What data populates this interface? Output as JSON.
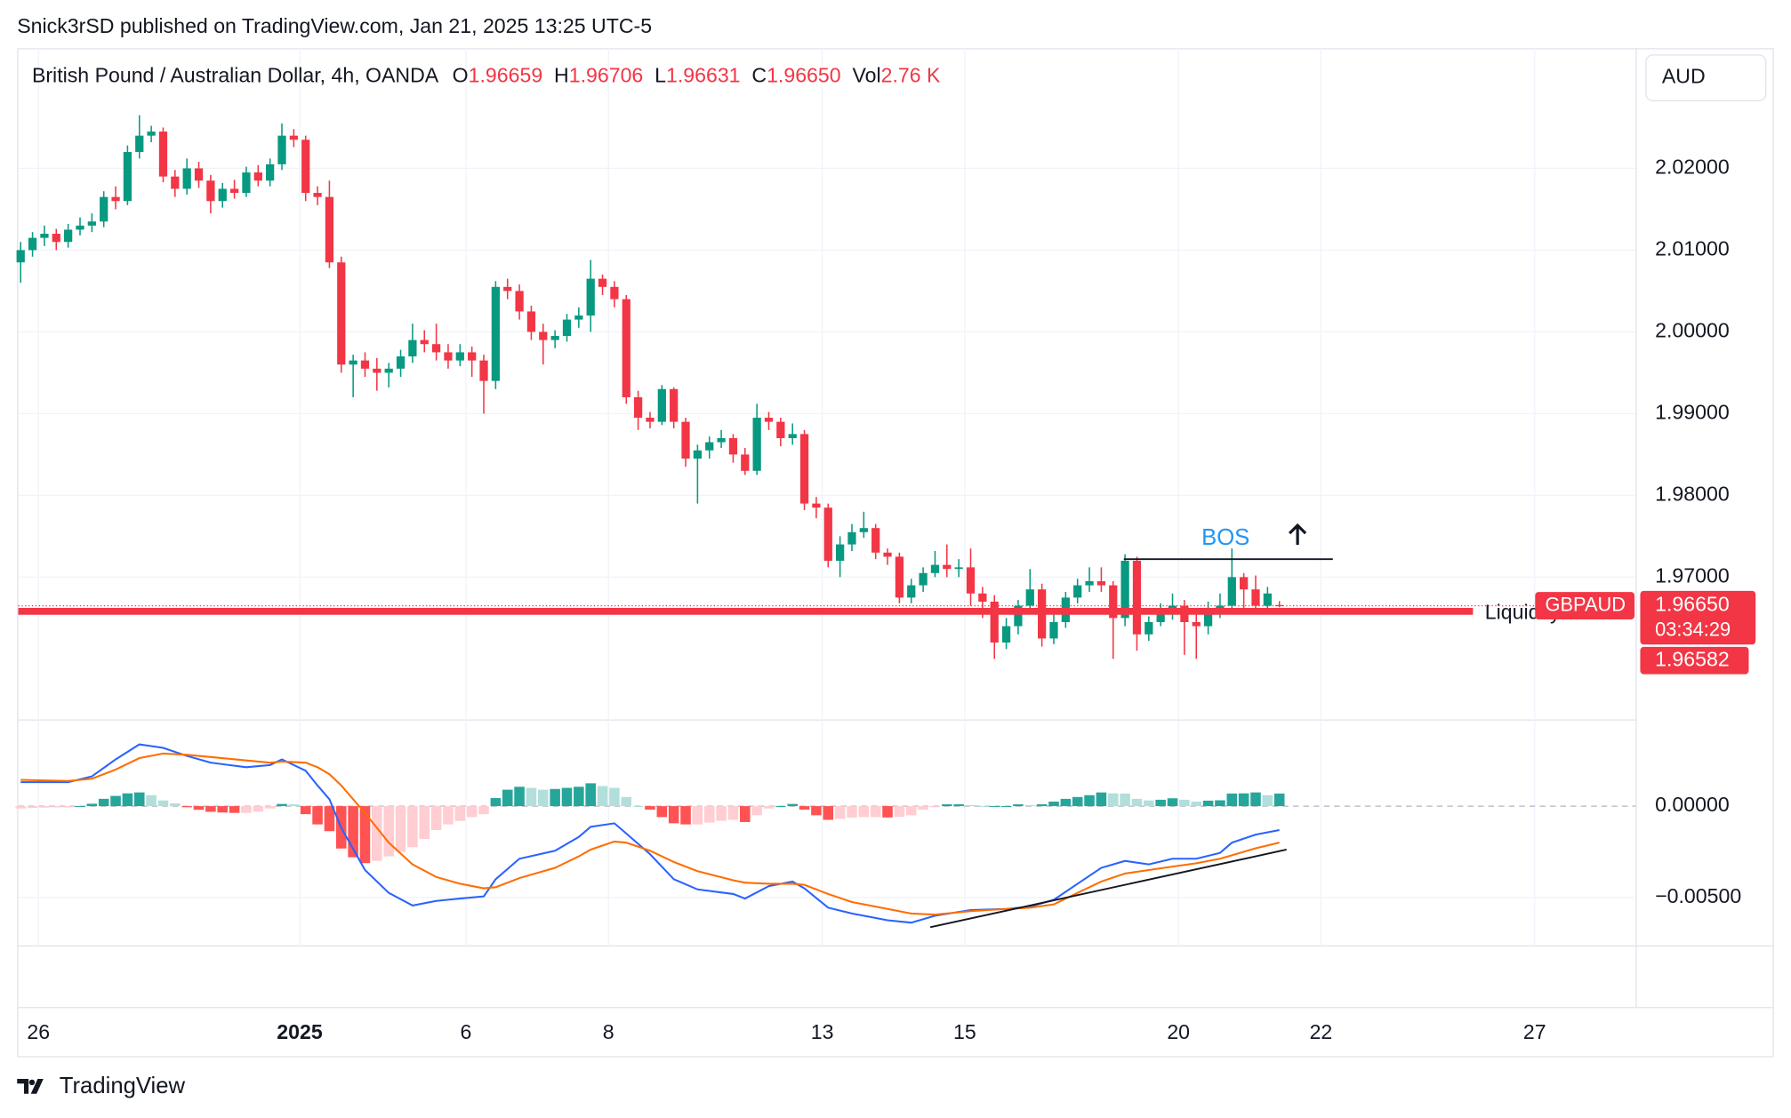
{
  "header": {
    "published": "Snick3rSD published on TradingView.com, Jan 21, 2025 13:25 UTC-5",
    "brand": "TradingView"
  },
  "chart_data": {
    "type": "candlestick",
    "title": "British Pound / Australian Dollar, 4h, OANDA",
    "ohlc_letters": [
      "O",
      "H",
      "L",
      "C"
    ],
    "ohlc_labels": [
      "1.96659",
      "1.96706",
      "1.96631",
      "1.96650"
    ],
    "volume_name": "Vol",
    "volume": 2760,
    "volume_label": "2.76 K",
    "currency": "AUD",
    "symbol": "GBPAUD",
    "countdown": "03:34:29",
    "up_color": "#089981",
    "down_color": "#f23645",
    "candles": [
      [
        2.0085,
        2.011,
        2.006,
        2.01
      ],
      [
        2.01,
        2.0122,
        2.0092,
        2.0115
      ],
      [
        2.0115,
        2.013,
        2.0105,
        2.012
      ],
      [
        2.012,
        2.0126,
        2.01,
        2.011
      ],
      [
        2.011,
        2.0132,
        2.0103,
        2.0125
      ],
      [
        2.0125,
        2.014,
        2.0118,
        2.013
      ],
      [
        2.013,
        2.0145,
        2.0122,
        2.0135
      ],
      [
        2.0135,
        2.0172,
        2.0128,
        2.0165
      ],
      [
        2.0165,
        2.0178,
        2.015,
        2.016
      ],
      [
        2.016,
        2.0228,
        2.0155,
        2.022
      ],
      [
        2.022,
        2.0265,
        2.0212,
        2.024
      ],
      [
        2.024,
        2.0252,
        2.0232,
        2.0245
      ],
      [
        2.0245,
        2.025,
        2.0183,
        2.019
      ],
      [
        2.019,
        2.0198,
        2.0165,
        2.0175
      ],
      [
        2.0175,
        2.0212,
        2.0168,
        2.02
      ],
      [
        2.02,
        2.0208,
        2.0176,
        2.0185
      ],
      [
        2.0185,
        2.0192,
        2.0145,
        2.016
      ],
      [
        2.016,
        2.0182,
        2.0152,
        2.0175
      ],
      [
        2.0175,
        2.0186,
        2.0163,
        2.017
      ],
      [
        2.017,
        2.0202,
        2.0165,
        2.0195
      ],
      [
        2.0195,
        2.0204,
        2.0178,
        2.0185
      ],
      [
        2.0185,
        2.0212,
        2.0178,
        2.0205
      ],
      [
        2.0205,
        2.0255,
        2.0198,
        2.024
      ],
      [
        2.024,
        2.0248,
        2.0226,
        2.0235
      ],
      [
        2.0235,
        2.024,
        2.016,
        2.017
      ],
      [
        2.017,
        2.0178,
        2.0155,
        2.0165
      ],
      [
        2.0165,
        2.0185,
        2.0078,
        2.0085
      ],
      [
        2.0085,
        2.0092,
        1.995,
        1.996
      ],
      [
        1.996,
        1.9972,
        1.992,
        1.9965
      ],
      [
        1.9965,
        1.9975,
        1.9945,
        1.9955
      ],
      [
        1.9955,
        1.9968,
        1.9928,
        1.995
      ],
      [
        1.995,
        1.9962,
        1.9932,
        1.9955
      ],
      [
        1.9955,
        1.9978,
        1.9945,
        1.997
      ],
      [
        1.997,
        2.001,
        1.9962,
        1.999
      ],
      [
        1.999,
        2.0002,
        1.9975,
        1.9985
      ],
      [
        1.9985,
        2.001,
        1.9965,
        1.9975
      ],
      [
        1.9975,
        1.9985,
        1.9955,
        1.9965
      ],
      [
        1.9965,
        1.9985,
        1.9958,
        1.9975
      ],
      [
        1.9975,
        1.9982,
        1.9945,
        1.9965
      ],
      [
        1.9965,
        1.9972,
        1.99,
        1.994
      ],
      [
        1.994,
        2.0062,
        1.993,
        2.0055
      ],
      [
        2.0055,
        2.0065,
        2.004,
        2.005
      ],
      [
        2.005,
        2.0058,
        2.0015,
        2.0025
      ],
      [
        2.0025,
        2.0032,
        1.999,
        2.0
      ],
      [
        2.0,
        2.001,
        1.996,
        1.999
      ],
      [
        1.999,
        2.0002,
        1.998,
        1.9995
      ],
      [
        1.9995,
        2.0022,
        1.9988,
        2.0015
      ],
      [
        2.0015,
        2.003,
        2.0005,
        2.002
      ],
      [
        2.002,
        2.0088,
        2.0,
        2.0065
      ],
      [
        2.0065,
        2.007,
        2.0045,
        2.0055
      ],
      [
        2.0055,
        2.0062,
        2.003,
        2.004
      ],
      [
        2.004,
        2.0045,
        1.9912,
        1.992
      ],
      [
        1.992,
        1.9928,
        1.988,
        1.9895
      ],
      [
        1.9895,
        1.9902,
        1.9882,
        1.989
      ],
      [
        1.989,
        1.9935,
        1.9886,
        1.993
      ],
      [
        1.993,
        1.9932,
        1.9882,
        1.989
      ],
      [
        1.989,
        1.9895,
        1.9835,
        1.9845
      ],
      [
        1.9845,
        1.9862,
        1.979,
        1.9855
      ],
      [
        1.9855,
        1.9872,
        1.9845,
        1.9865
      ],
      [
        1.9865,
        1.988,
        1.9858,
        1.987
      ],
      [
        1.987,
        1.9875,
        1.984,
        1.985
      ],
      [
        1.985,
        1.9858,
        1.9825,
        1.983
      ],
      [
        1.983,
        1.9912,
        1.9825,
        1.9895
      ],
      [
        1.9895,
        1.9902,
        1.988,
        1.989
      ],
      [
        1.989,
        1.9895,
        1.986,
        1.987
      ],
      [
        1.987,
        1.9888,
        1.9862,
        1.9875
      ],
      [
        1.9875,
        1.988,
        1.9782,
        1.979
      ],
      [
        1.979,
        1.9798,
        1.9772,
        1.9785
      ],
      [
        1.9785,
        1.979,
        1.9712,
        1.972
      ],
      [
        1.972,
        1.975,
        1.97,
        1.974
      ],
      [
        1.974,
        1.9765,
        1.9732,
        1.9755
      ],
      [
        1.9755,
        1.978,
        1.9748,
        1.976
      ],
      [
        1.976,
        1.9765,
        1.9722,
        1.973
      ],
      [
        1.973,
        1.9735,
        1.9715,
        1.9725
      ],
      [
        1.9725,
        1.973,
        1.9668,
        1.9675
      ],
      [
        1.9675,
        1.9698,
        1.9668,
        1.969
      ],
      [
        1.969,
        1.9712,
        1.9682,
        1.9705
      ],
      [
        1.9705,
        1.9732,
        1.97,
        1.9715
      ],
      [
        1.9715,
        1.974,
        1.97,
        1.971
      ],
      [
        1.971,
        1.9722,
        1.97,
        1.9712
      ],
      [
        1.9712,
        1.9735,
        1.9665,
        1.968
      ],
      [
        1.968,
        1.9688,
        1.965,
        1.967
      ],
      [
        1.967,
        1.9678,
        1.96,
        1.962
      ],
      [
        1.962,
        1.965,
        1.9612,
        1.964
      ],
      [
        1.964,
        1.9672,
        1.963,
        1.9665
      ],
      [
        1.9665,
        1.971,
        1.9658,
        1.9685
      ],
      [
        1.9685,
        1.9692,
        1.9615,
        1.9625
      ],
      [
        1.9625,
        1.9655,
        1.9618,
        1.9645
      ],
      [
        1.9645,
        1.9682,
        1.9638,
        1.9675
      ],
      [
        1.9675,
        1.9698,
        1.9668,
        1.969
      ],
      [
        1.969,
        1.9712,
        1.9682,
        1.9695
      ],
      [
        1.9695,
        1.9712,
        1.9682,
        1.969
      ],
      [
        1.969,
        1.9695,
        1.96,
        1.965
      ],
      [
        1.965,
        1.9728,
        1.964,
        1.972
      ],
      [
        1.972,
        1.9725,
        1.961,
        1.963
      ],
      [
        1.963,
        1.9652,
        1.9622,
        1.9645
      ],
      [
        1.9645,
        1.9668,
        1.964,
        1.9655
      ],
      [
        1.9655,
        1.968,
        1.9648,
        1.9665
      ],
      [
        1.9665,
        1.9672,
        1.9605,
        1.9645
      ],
      [
        1.9645,
        1.966,
        1.96,
        1.964
      ],
      [
        1.964,
        1.967,
        1.963,
        1.966
      ],
      [
        1.966,
        1.968,
        1.965,
        1.9665
      ],
      [
        1.9665,
        1.9735,
        1.9655,
        1.97
      ],
      [
        1.97,
        1.9705,
        1.966,
        1.9685
      ],
      [
        1.9685,
        1.9702,
        1.9658,
        1.9665
      ],
      [
        1.9665,
        1.9688,
        1.9655,
        1.968
      ],
      [
        1.96659,
        1.96706,
        1.96631,
        1.9665
      ]
    ],
    "xlim": [
      -0.2,
      136
    ],
    "xticks": [
      {
        "value": 1.5,
        "label": "26"
      },
      {
        "value": 23.5,
        "label": "2025"
      },
      {
        "value": 37.5,
        "label": "6"
      },
      {
        "value": 49.5,
        "label": "8"
      },
      {
        "value": 67.5,
        "label": "13"
      },
      {
        "value": 79.5,
        "label": "15"
      },
      {
        "value": 97.5,
        "label": "20"
      },
      {
        "value": 109.5,
        "label": "22"
      },
      {
        "value": 127.5,
        "label": "27"
      }
    ],
    "ylim": [
      1.9526,
      2.0347
    ],
    "yticks": [
      {
        "value": 1.97,
        "label": "1.97000"
      },
      {
        "value": 1.98,
        "label": "1.98000"
      },
      {
        "value": 1.99,
        "label": "1.99000"
      },
      {
        "value": 2.0,
        "label": "2.00000"
      },
      {
        "value": 2.01,
        "label": "2.01000"
      },
      {
        "value": 2.02,
        "label": "2.02000"
      }
    ],
    "grid": true,
    "liquidity": {
      "label": "Liquidity",
      "price": 1.96582,
      "x": [
        -0.2,
        122.3
      ],
      "color": "#f23645"
    },
    "bos": {
      "label": "BOS",
      "price": 1.9722,
      "x": [
        92.9,
        110.5
      ],
      "color": "#2196f3"
    },
    "macd": {
      "ylim": [
        -0.007625,
        0.004625
      ],
      "yticks": [
        {
          "value": 0,
          "label": "0.00000"
        },
        {
          "value": -0.005,
          "label": "−0.00500"
        }
      ],
      "macd_color": "#2962ff",
      "signal_color": "#ff6d00",
      "hist_colors": [
        "#26a69a",
        "#b2dfdb",
        "#ff5252",
        "#ffcdd2"
      ],
      "x": [
        0,
        4,
        6,
        8,
        10,
        12,
        14,
        16,
        19,
        21,
        22,
        24,
        25,
        26,
        27,
        29,
        31,
        33,
        35,
        37,
        39,
        40,
        42,
        45,
        47,
        48,
        50,
        51,
        53,
        55,
        57,
        60,
        61,
        63,
        65,
        66,
        68,
        70,
        73,
        75,
        77,
        80,
        83,
        85,
        87,
        89,
        91,
        93,
        95,
        97,
        99,
        101,
        102,
        104,
        106
      ],
      "macd_values": [
        0.00131,
        0.00131,
        0.00163,
        0.00256,
        0.00338,
        0.00319,
        0.00275,
        0.00238,
        0.00213,
        0.00225,
        0.00256,
        0.00194,
        0.00113,
        0.00038,
        -0.00119,
        -0.0035,
        -0.00475,
        -0.00544,
        -0.00519,
        -0.00506,
        -0.00494,
        -0.004,
        -0.00288,
        -0.00244,
        -0.00169,
        -0.00113,
        -0.00094,
        -0.0015,
        -0.00263,
        -0.004,
        -0.00456,
        -0.00481,
        -0.00506,
        -0.00438,
        -0.00413,
        -0.0045,
        -0.00556,
        -0.00588,
        -0.00625,
        -0.00638,
        -0.006,
        -0.00569,
        -0.00563,
        -0.0055,
        -0.00513,
        -0.00425,
        -0.00338,
        -0.003,
        -0.00319,
        -0.00288,
        -0.00288,
        -0.00256,
        -0.002,
        -0.00156,
        -0.00131
      ],
      "signal_values": [
        0.00144,
        0.00138,
        0.0015,
        0.002,
        0.00263,
        0.00288,
        0.00281,
        0.00269,
        0.0025,
        0.00238,
        0.00244,
        0.00238,
        0.00213,
        0.00175,
        0.00113,
        -0.00038,
        -0.002,
        -0.00319,
        -0.00388,
        -0.00425,
        -0.0045,
        -0.00444,
        -0.00394,
        -0.00338,
        -0.00275,
        -0.00238,
        -0.00194,
        -0.002,
        -0.00244,
        -0.00306,
        -0.00356,
        -0.00406,
        -0.00419,
        -0.00425,
        -0.00425,
        -0.00431,
        -0.00481,
        -0.00525,
        -0.00563,
        -0.00588,
        -0.00594,
        -0.00575,
        -0.00563,
        -0.00556,
        -0.00538,
        -0.00475,
        -0.00413,
        -0.00369,
        -0.0035,
        -0.00331,
        -0.00313,
        -0.00288,
        -0.00269,
        -0.00231,
        -0.002
      ],
      "histogram": [
        -0.00013,
        -0.0001,
        -8e-05,
        -7e-05,
        -7e-05,
        0,
        0.00013,
        0.0004,
        0.00056,
        0.0007,
        0.00075,
        0.0006,
        0.00031,
        0.00015,
        -6e-05,
        -0.0002,
        -0.00031,
        -0.00035,
        -0.00037,
        -0.00037,
        -0.0003,
        -0.00013,
        0.00012,
        0.0001,
        -0.00044,
        -0.001,
        -0.00137,
        -0.00232,
        -0.0028,
        -0.00312,
        -0.003,
        -0.00275,
        -0.0025,
        -0.00225,
        -0.0018,
        -0.00131,
        -0.001,
        -0.00081,
        -0.0006,
        -0.00044,
        0.00044,
        0.0009,
        0.00106,
        0.001,
        0.0009,
        0.00094,
        0.001,
        0.00106,
        0.00125,
        0.0011,
        0.001,
        0.0005,
        0,
        -0.00019,
        -0.0006,
        -0.00094,
        -0.001,
        -0.001,
        -0.0009,
        -0.0008,
        -0.00075,
        -0.00087,
        -0.0005,
        -0.00013,
        0,
        0.00012,
        -0.00019,
        -0.0005,
        -0.00075,
        -0.0007,
        -0.00063,
        -0.0006,
        -0.0006,
        -0.00062,
        -0.00058,
        -0.0005,
        -0.0002,
        -6e-05,
        0.0001,
        0.0001,
        6e-05,
        0,
        0,
        0,
        0.0001,
        6e-05,
        0.0001,
        0.00025,
        0.0004,
        0.0005,
        0.0006,
        0.00075,
        0.0007,
        0.00069,
        0.0004,
        0.00031,
        0.00035,
        0.00043,
        0.00035,
        0.00025,
        0.0003,
        0.00032,
        0.00069,
        0.0007,
        0.00075,
        0.0006,
        0.00069
      ],
      "trendline": {
        "x": [
          76.6,
          106.6
        ],
        "y": [
          -0.00663,
          -0.00238
        ]
      }
    }
  }
}
